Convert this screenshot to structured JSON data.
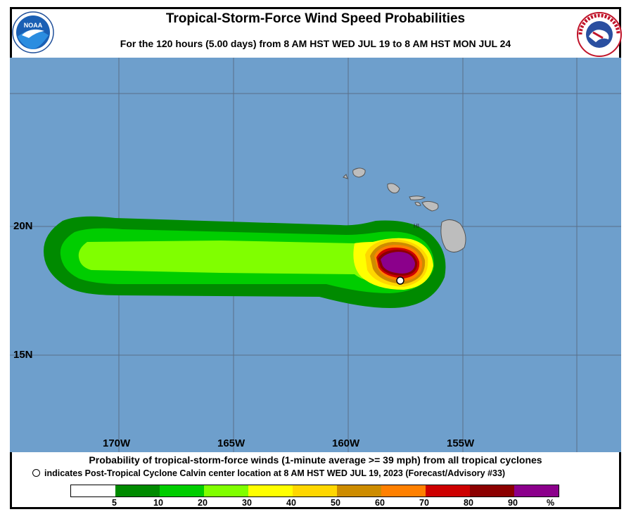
{
  "header": {
    "title": "Tropical-Storm-Force Wind Speed Probabilities",
    "subtitle": "For the 120 hours (5.00 days) from 8 AM HST WED JUL 19 to 8 AM HST MON JUL 24",
    "left_logo": "NOAA",
    "right_logo": "NATIONAL WEATHER SERVICE"
  },
  "map": {
    "ocean_color": "#6e9fcc",
    "land_color": "#bdbdbd",
    "latitude_labels": [
      "20N",
      "15N"
    ],
    "longitude_labels": [
      "170W",
      "165W",
      "160W",
      "155W"
    ],
    "island_label": "HI"
  },
  "caption": {
    "line1": "Probability of tropical-storm-force winds (1-minute average >= 39 mph) from all tropical cyclones",
    "line2": "indicates Post-Tropical Cyclone Calvin center location at 8 AM HST WED JUL 19, 2023 (Forecast/Advisory #33)"
  },
  "legend": {
    "colors": [
      "#ffffff",
      "#008a00",
      "#00cd00",
      "#80ff00",
      "#ffff00",
      "#ffd700",
      "#cd8c00",
      "#ff8000",
      "#cd0000",
      "#8b0000",
      "#8b008b"
    ],
    "labels": [
      "5",
      "10",
      "20",
      "30",
      "40",
      "50",
      "60",
      "70",
      "80",
      "90",
      "%"
    ]
  }
}
